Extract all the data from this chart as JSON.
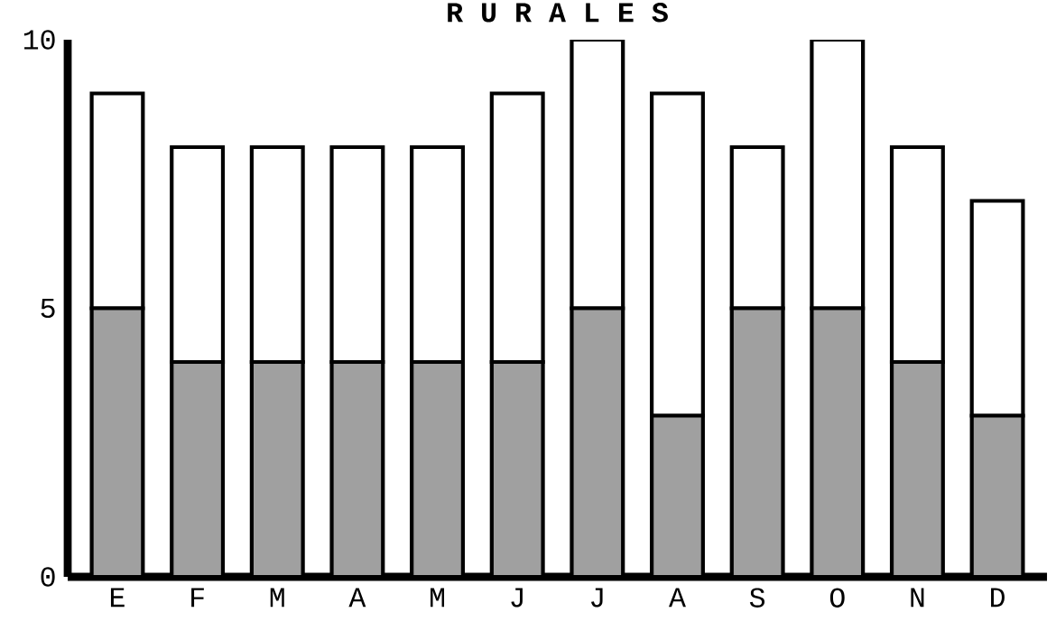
{
  "chart_data": {
    "type": "bar",
    "title": "R U R A L E S",
    "stacked": true,
    "categories": [
      "E",
      "F",
      "M",
      "A",
      "M",
      "J",
      "J",
      "A",
      "S",
      "O",
      "N",
      "D"
    ],
    "series": [
      {
        "color": "#a0a0a0",
        "values": [
          5,
          4,
          4,
          4,
          4,
          4,
          5,
          3,
          5,
          5,
          4,
          3
        ]
      },
      {
        "color": "#ffffff",
        "values": [
          4,
          4,
          4,
          4,
          4,
          5,
          5,
          6,
          3,
          5,
          4,
          4
        ]
      }
    ],
    "ylim": [
      0,
      10
    ],
    "yticks": [
      0,
      5,
      10
    ],
    "grid": false
  }
}
